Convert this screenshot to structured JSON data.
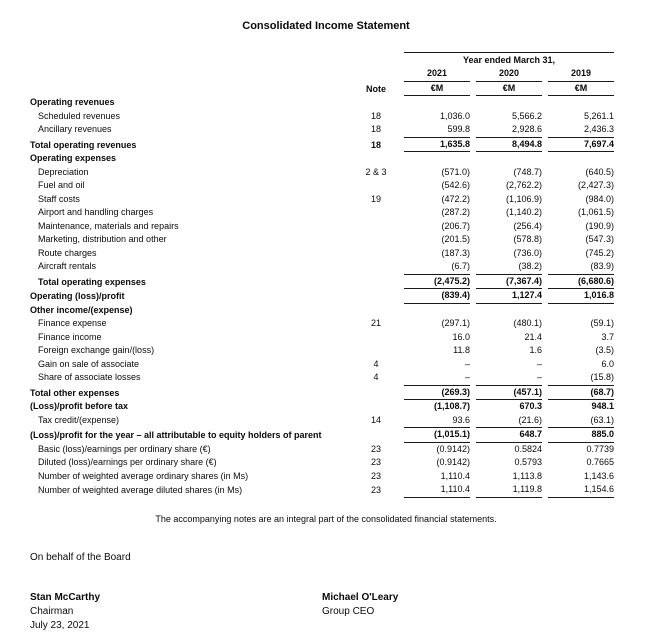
{
  "title": "Consolidated Income Statement",
  "table": {
    "period_header": "Year ended March 31,",
    "note_header": "Note",
    "years": [
      "2021",
      "2020",
      "2019"
    ],
    "currency_unit": "€M",
    "rows": [
      {
        "label": "Operating revenues",
        "note": "",
        "style": "section",
        "indent": false
      },
      {
        "label": "Scheduled revenues",
        "note": "18",
        "values": [
          "1,036.0",
          "5,566.2",
          "5,261.1"
        ],
        "style": "item",
        "indent": true
      },
      {
        "label": "Ancillary revenues",
        "note": "18",
        "values": [
          "599.8",
          "2,928.6",
          "2,436.3"
        ],
        "style": "item",
        "indent": true
      },
      {
        "label": "Total operating revenues",
        "note": "18",
        "values": [
          "1,635.8",
          "8,494.8",
          "7,697.4"
        ],
        "style": "total",
        "indent": false
      },
      {
        "label": "Operating expenses",
        "note": "",
        "style": "section",
        "indent": false
      },
      {
        "label": "Depreciation",
        "note": "2 & 3",
        "values": [
          "(571.0)",
          "(748.7)",
          "(640.5)"
        ],
        "style": "item",
        "indent": true
      },
      {
        "label": "Fuel and oil",
        "note": "",
        "values": [
          "(542.6)",
          "(2,762.2)",
          "(2,427.3)"
        ],
        "style": "item",
        "indent": true
      },
      {
        "label": "Staff costs",
        "note": "19",
        "values": [
          "(472.2)",
          "(1,106.9)",
          "(984.0)"
        ],
        "style": "item",
        "indent": true
      },
      {
        "label": "Airport and handling charges",
        "note": "",
        "values": [
          "(287.2)",
          "(1,140.2)",
          "(1,061.5)"
        ],
        "style": "item",
        "indent": true
      },
      {
        "label": "Maintenance, materials and repairs",
        "note": "",
        "values": [
          "(206.7)",
          "(256.4)",
          "(190.9)"
        ],
        "style": "item",
        "indent": true
      },
      {
        "label": "Marketing, distribution and other",
        "note": "",
        "values": [
          "(201.5)",
          "(578.8)",
          "(547.3)"
        ],
        "style": "item",
        "indent": true
      },
      {
        "label": "Route charges",
        "note": "",
        "values": [
          "(187.3)",
          "(736.0)",
          "(745.2)"
        ],
        "style": "item",
        "indent": true
      },
      {
        "label": "Aircraft rentals",
        "note": "",
        "values": [
          "(6.7)",
          "(38.2)",
          "(83.9)"
        ],
        "style": "item",
        "indent": true
      },
      {
        "label": "Total operating expenses",
        "note": "",
        "values": [
          "(2,475.2)",
          "(7,367.4)",
          "(6,680.6)"
        ],
        "style": "total",
        "indent": true
      },
      {
        "label": "Operating (loss)/profit",
        "note": "",
        "values": [
          "(839.4)",
          "1,127.4",
          "1,016.8"
        ],
        "style": "result",
        "indent": false
      },
      {
        "label": "Other income/(expense)",
        "note": "",
        "style": "section",
        "indent": false
      },
      {
        "label": "Finance expense",
        "note": "21",
        "values": [
          "(297.1)",
          "(480.1)",
          "(59.1)"
        ],
        "style": "item",
        "indent": true
      },
      {
        "label": "Finance income",
        "note": "",
        "values": [
          "16.0",
          "21.4",
          "3.7"
        ],
        "style": "item",
        "indent": true
      },
      {
        "label": "Foreign exchange gain/(loss)",
        "note": "",
        "values": [
          "11.8",
          "1.6",
          "(3.5)"
        ],
        "style": "item",
        "indent": true
      },
      {
        "label": "Gain on sale of associate",
        "note": "4",
        "values": [
          "–",
          "–",
          "6.0"
        ],
        "style": "item",
        "indent": true
      },
      {
        "label": "Share of associate losses",
        "note": "4",
        "values": [
          "–",
          "–",
          "(15.8)"
        ],
        "style": "item",
        "indent": true
      },
      {
        "label": "Total other expenses",
        "note": "",
        "values": [
          "(269.3)",
          "(457.1)",
          "(68.7)"
        ],
        "style": "total",
        "indent": false
      },
      {
        "label": "(Loss)/profit before tax",
        "note": "",
        "values": [
          "(1,108.7)",
          "670.3",
          "948.1"
        ],
        "style": "bold",
        "indent": false
      },
      {
        "label": "Tax credit/(expense)",
        "note": "14",
        "values": [
          "93.6",
          "(21.6)",
          "(63.1)"
        ],
        "style": "item",
        "indent": true
      },
      {
        "label": "(Loss)/profit for the year – all attributable to equity holders of parent",
        "note": "",
        "values": [
          "(1,015.1)",
          "648.7",
          "885.0"
        ],
        "style": "total",
        "indent": false
      },
      {
        "label": "Basic (loss)/earnings per ordinary share (€)",
        "note": "23",
        "values": [
          "(0.9142)",
          "0.5824",
          "0.7739"
        ],
        "style": "item",
        "indent": true
      },
      {
        "label": "Diluted (loss)/earnings per ordinary share (€)",
        "note": "23",
        "values": [
          "(0.9142)",
          "0.5793",
          "0.7665"
        ],
        "style": "item",
        "indent": true
      },
      {
        "label": "Number of weighted average ordinary shares (in Ms)",
        "note": "23",
        "values": [
          "1,110.4",
          "1,113.8",
          "1,143.6"
        ],
        "style": "item",
        "indent": true
      },
      {
        "label": "Number of weighted average diluted shares (in Ms)",
        "note": "23",
        "values": [
          "1,110.4",
          "1,119.8",
          "1,154.6"
        ],
        "style": "item-end",
        "indent": true
      }
    ]
  },
  "footnote": "The accompanying notes are an integral part of the consolidated financial statements.",
  "board_statement": "On behalf of the Board",
  "signatures": [
    {
      "name": "Stan McCarthy",
      "title": "Chairman",
      "date": "July 23, 2021"
    },
    {
      "name": "Michael O'Leary",
      "title": "Group CEO",
      "date": ""
    }
  ]
}
